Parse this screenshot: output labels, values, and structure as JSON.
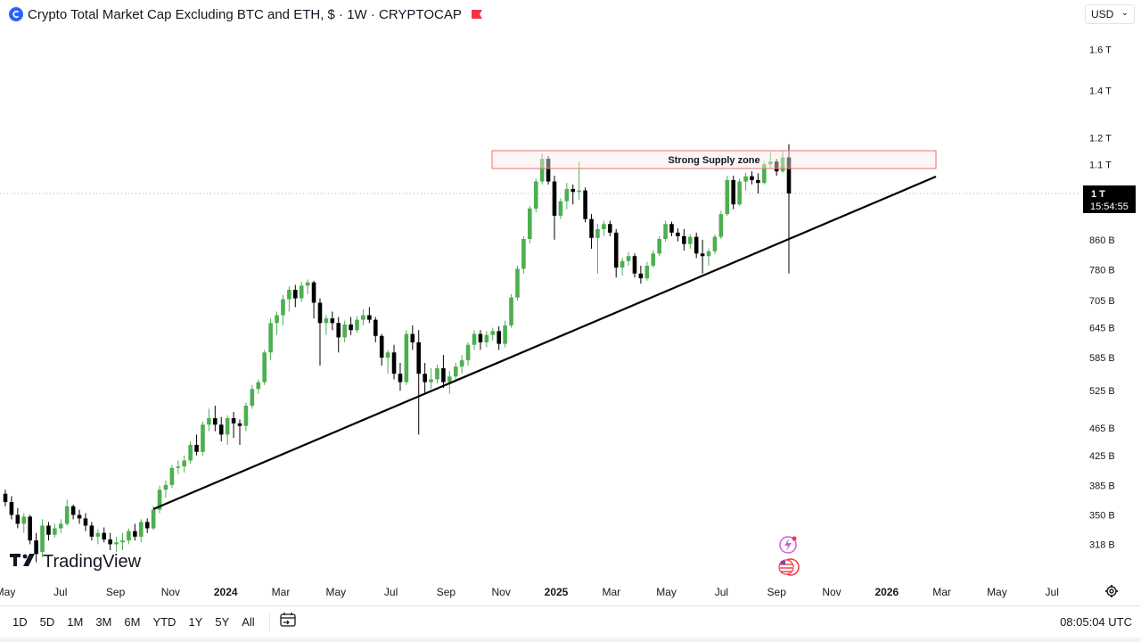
{
  "header": {
    "title": "Crypto Total Market Cap Excluding BTC and ETH, $ · 1W · CRYPTOCAP",
    "symbol_icon": "cryptocap-logo-icon",
    "flag_icon": "red-flag-icon",
    "currency": "USD"
  },
  "price_scale": {
    "labels": [
      "1.6 T",
      "1.4 T",
      "1.2 T",
      "1.1 T",
      "860 B",
      "780 B",
      "705 B",
      "645 B",
      "585 B",
      "525 B",
      "465 B",
      "425 B",
      "385 B",
      "350 B",
      "318 B"
    ],
    "current_price": "1 T",
    "countdown": "15:54:55"
  },
  "time_scale": {
    "labels": [
      "May",
      "Jul",
      "Sep",
      "Nov",
      "2024",
      "Mar",
      "May",
      "Jul",
      "Sep",
      "Nov",
      "2025",
      "Mar",
      "May",
      "Jul",
      "Sep",
      "Nov",
      "2026",
      "Mar",
      "May",
      "Jul"
    ],
    "bold": [
      "2024",
      "2025",
      "2026"
    ]
  },
  "annotations": {
    "supply_zone": "Strong Supply zone",
    "watermark": "TradingView"
  },
  "bottom_bar": {
    "timeframes": [
      "1D",
      "5D",
      "1M",
      "3M",
      "6M",
      "YTD",
      "1Y",
      "5Y",
      "All"
    ],
    "clock": "08:05:04 UTC"
  },
  "colors": {
    "up": "#4caf50",
    "down": "#000000",
    "zone_border": "#e57373",
    "zone_fill": "#fff5f5",
    "price_tag_bg": "#000000"
  },
  "chart_data": {
    "type": "candlestick",
    "title": "Crypto Total Market Cap Excluding BTC and ETH",
    "interval": "1W",
    "y_scale": "log",
    "ylim": [
      "300B",
      "1.75T"
    ],
    "x_range": [
      "Apr 2023",
      "Jul 2026"
    ],
    "grid": false,
    "supply_zone": {
      "label": "Strong Supply zone",
      "from": "Nov 2024",
      "to": "Jan 2026",
      "low_B": 1080,
      "high_B": 1130
    },
    "trendline": {
      "from": {
        "date": "Oct 2023",
        "value_B": 360
      },
      "to": {
        "date": "Jan 2026",
        "value_B": 1030
      }
    },
    "last_price_B": 1000,
    "ohlc_B": [
      [
        375,
        380,
        360,
        365
      ],
      [
        365,
        372,
        345,
        350
      ],
      [
        350,
        358,
        335,
        340
      ],
      [
        340,
        352,
        330,
        348
      ],
      [
        348,
        350,
        318,
        322
      ],
      [
        322,
        330,
        300,
        308
      ],
      [
        310,
        345,
        305,
        338
      ],
      [
        338,
        342,
        322,
        328
      ],
      [
        328,
        340,
        325,
        335
      ],
      [
        335,
        345,
        330,
        340
      ],
      [
        340,
        368,
        338,
        360
      ],
      [
        360,
        362,
        345,
        350
      ],
      [
        350,
        356,
        340,
        346
      ],
      [
        346,
        352,
        332,
        338
      ],
      [
        338,
        342,
        322,
        326
      ],
      [
        326,
        334,
        318,
        330
      ],
      [
        330,
        336,
        320,
        323
      ],
      [
        323,
        330,
        312,
        318
      ],
      [
        318,
        326,
        310,
        320
      ],
      [
        320,
        330,
        312,
        322
      ],
      [
        322,
        335,
        318,
        332
      ],
      [
        332,
        340,
        322,
        326
      ],
      [
        326,
        345,
        320,
        342
      ],
      [
        342,
        346,
        330,
        335
      ],
      [
        335,
        360,
        333,
        356
      ],
      [
        356,
        385,
        352,
        380
      ],
      [
        380,
        392,
        370,
        386
      ],
      [
        386,
        412,
        382,
        408
      ],
      [
        408,
        418,
        400,
        410
      ],
      [
        410,
        425,
        402,
        418
      ],
      [
        418,
        445,
        414,
        440
      ],
      [
        440,
        455,
        425,
        430
      ],
      [
        430,
        475,
        425,
        470
      ],
      [
        470,
        495,
        460,
        480
      ],
      [
        480,
        500,
        460,
        470
      ],
      [
        470,
        482,
        445,
        455
      ],
      [
        455,
        485,
        440,
        480
      ],
      [
        480,
        490,
        450,
        472
      ],
      [
        472,
        478,
        440,
        468
      ],
      [
        468,
        505,
        460,
        500
      ],
      [
        500,
        535,
        495,
        528
      ],
      [
        528,
        545,
        520,
        540
      ],
      [
        540,
        600,
        535,
        595
      ],
      [
        595,
        665,
        580,
        655
      ],
      [
        655,
        680,
        630,
        672
      ],
      [
        672,
        718,
        650,
        708
      ],
      [
        708,
        738,
        680,
        730
      ],
      [
        730,
        742,
        690,
        710
      ],
      [
        710,
        750,
        702,
        740
      ],
      [
        740,
        755,
        720,
        748
      ],
      [
        748,
        752,
        665,
        700
      ],
      [
        700,
        710,
        570,
        655
      ],
      [
        655,
        672,
        630,
        665
      ],
      [
        665,
        680,
        640,
        655
      ],
      [
        655,
        668,
        595,
        625
      ],
      [
        625,
        660,
        615,
        652
      ],
      [
        652,
        668,
        630,
        640
      ],
      [
        640,
        670,
        635,
        662
      ],
      [
        662,
        685,
        650,
        672
      ],
      [
        672,
        690,
        655,
        662
      ],
      [
        662,
        668,
        615,
        628
      ],
      [
        628,
        632,
        570,
        585
      ],
      [
        585,
        600,
        555,
        595
      ],
      [
        595,
        610,
        545,
        555
      ],
      [
        555,
        575,
        525,
        540
      ],
      [
        540,
        640,
        535,
        632
      ],
      [
        632,
        650,
        600,
        615
      ],
      [
        615,
        640,
        455,
        555
      ],
      [
        555,
        575,
        520,
        540
      ],
      [
        540,
        565,
        528,
        545
      ],
      [
        545,
        572,
        538,
        565
      ],
      [
        565,
        590,
        530,
        540
      ],
      [
        540,
        560,
        520,
        550
      ],
      [
        550,
        575,
        545,
        568
      ],
      [
        568,
        590,
        555,
        580
      ],
      [
        580,
        615,
        570,
        610
      ],
      [
        610,
        640,
        600,
        632
      ],
      [
        632,
        640,
        600,
        615
      ],
      [
        615,
        638,
        605,
        630
      ],
      [
        630,
        645,
        618,
        638
      ],
      [
        638,
        648,
        600,
        612
      ],
      [
        612,
        660,
        605,
        650
      ],
      [
        650,
        720,
        645,
        712
      ],
      [
        712,
        790,
        705,
        782
      ],
      [
        782,
        870,
        770,
        862
      ],
      [
        862,
        960,
        850,
        952
      ],
      [
        952,
        1050,
        940,
        1040
      ],
      [
        1040,
        1140,
        1030,
        1120
      ],
      [
        1120,
        1130,
        1030,
        1040
      ],
      [
        1040,
        1060,
        860,
        930
      ],
      [
        930,
        985,
        920,
        975
      ],
      [
        975,
        1035,
        950,
        1015
      ],
      [
        1015,
        1030,
        965,
        1005
      ],
      [
        1005,
        1110,
        980,
        1010
      ],
      [
        1010,
        1020,
        910,
        920
      ],
      [
        920,
        935,
        835,
        865
      ],
      [
        865,
        905,
        770,
        890
      ],
      [
        890,
        915,
        870,
        905
      ],
      [
        905,
        915,
        870,
        880
      ],
      [
        880,
        890,
        760,
        785
      ],
      [
        785,
        810,
        765,
        802
      ],
      [
        802,
        825,
        790,
        815
      ],
      [
        815,
        822,
        760,
        770
      ],
      [
        770,
        790,
        745,
        758
      ],
      [
        758,
        800,
        752,
        790
      ],
      [
        790,
        830,
        785,
        822
      ],
      [
        822,
        870,
        815,
        862
      ],
      [
        862,
        915,
        855,
        905
      ],
      [
        905,
        912,
        870,
        880
      ],
      [
        880,
        892,
        855,
        870
      ],
      [
        870,
        890,
        830,
        848
      ],
      [
        848,
        875,
        835,
        868
      ],
      [
        868,
        880,
        810,
        822
      ],
      [
        822,
        860,
        770,
        815
      ],
      [
        815,
        835,
        790,
        828
      ],
      [
        828,
        875,
        820,
        868
      ],
      [
        868,
        945,
        862,
        935
      ],
      [
        935,
        1060,
        930,
        1045
      ],
      [
        1045,
        1060,
        950,
        965
      ],
      [
        965,
        1050,
        960,
        1040
      ],
      [
        1040,
        1070,
        1010,
        1058
      ],
      [
        1058,
        1075,
        1030,
        1045
      ],
      [
        1045,
        1068,
        1000,
        1035
      ],
      [
        1035,
        1110,
        1030,
        1100
      ],
      [
        1100,
        1145,
        1085,
        1110
      ],
      [
        1110,
        1120,
        1060,
        1075
      ],
      [
        1075,
        1150,
        1070,
        1125
      ],
      [
        1125,
        1175,
        770,
        1000
      ]
    ]
  }
}
